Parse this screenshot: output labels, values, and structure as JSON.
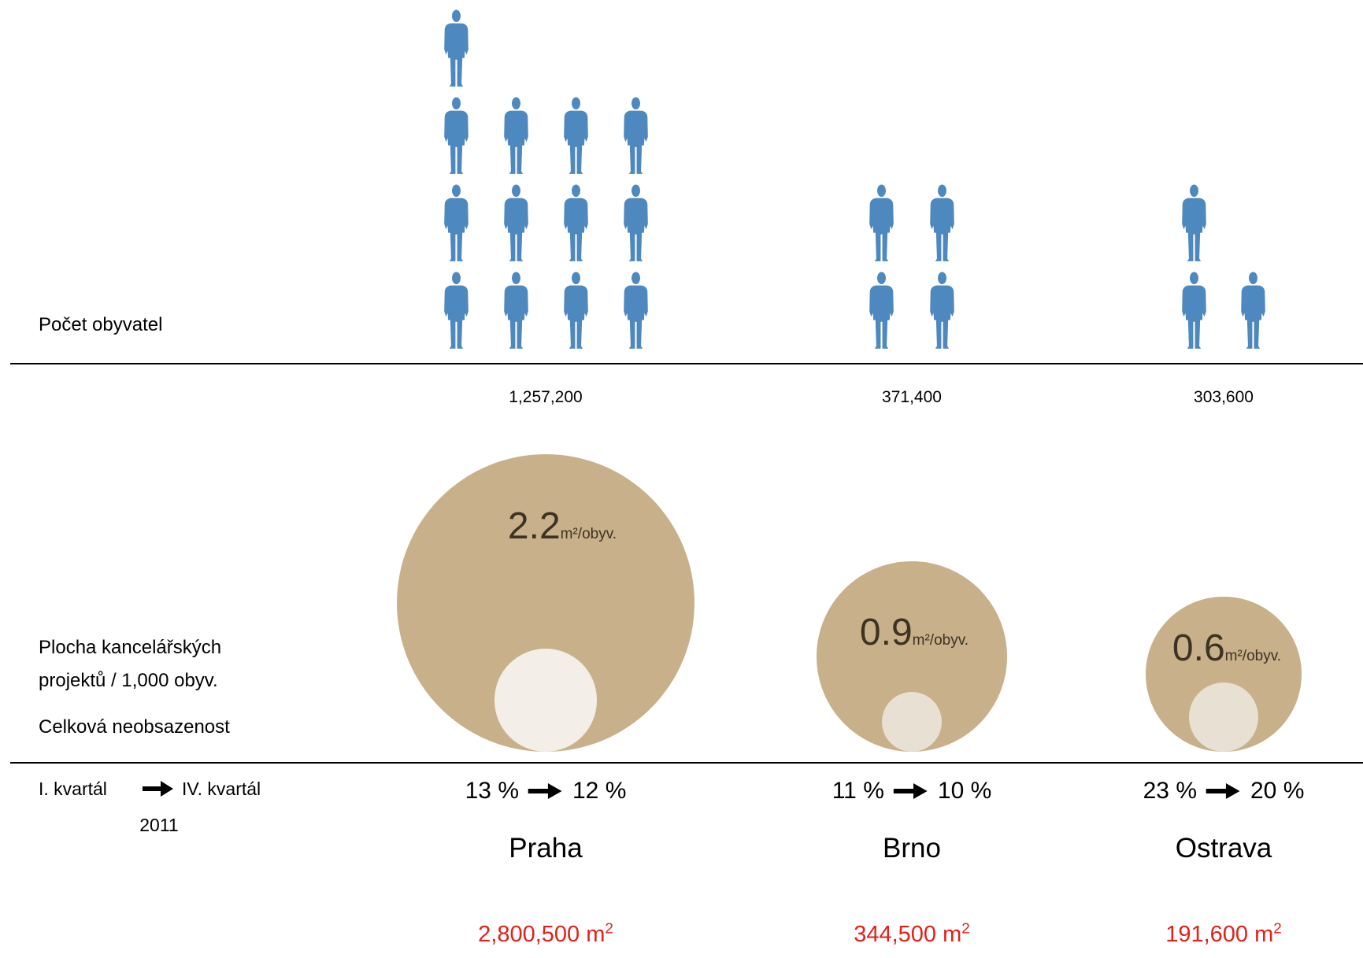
{
  "slide": {
    "row_labels": {
      "population": "Počet obyvatel",
      "office_area_line1": "Plocha kancelářských",
      "office_area_line2": "projektů / 1,000 obyv.",
      "vacancy": "Celková neobsazenost"
    },
    "period": {
      "from": "I. kvartál",
      "to": "IV. kvartál",
      "year": "2011"
    }
  },
  "icons": {
    "figure": "person-icon",
    "arrow": "arrow-right-icon"
  },
  "colors": {
    "figure": "#4d88bf",
    "bubble": "#c8b08a",
    "bubble_inner": [
      "#f3eee8",
      "#e8e0d3",
      "#e8e0d3"
    ],
    "bubble_text": "#3d3322",
    "total_text": "#e3201a",
    "line": "#000000"
  },
  "chart_data": {
    "type": "bar",
    "categories": [
      "Praha",
      "Brno",
      "Ostrava"
    ],
    "series": [
      {
        "values": [
          1257200,
          371400,
          303600
        ],
        "labels": [
          "1,257,200",
          "371,400",
          "303,600"
        ],
        "icons": [
          13,
          4,
          3
        ]
      },
      {
        "values": [
          2.2,
          0.9,
          0.6
        ],
        "labels": [
          "2.2",
          "0.9",
          "0.6"
        ],
        "unit": "m²/obyv."
      },
      {
        "from": [
          13,
          11,
          23
        ],
        "to": [
          12,
          10,
          20
        ],
        "from_labels": [
          "13 %",
          "11 %",
          "23 %"
        ],
        "to_labels": [
          "12 %",
          "10 %",
          "20 %"
        ]
      }
    ],
    "totals": {
      "values": [
        2800500,
        344500,
        191600
      ],
      "labels": [
        "2,800,500",
        "344,500",
        "191,600"
      ],
      "unit": "m",
      "unit_exponent": "2"
    }
  }
}
